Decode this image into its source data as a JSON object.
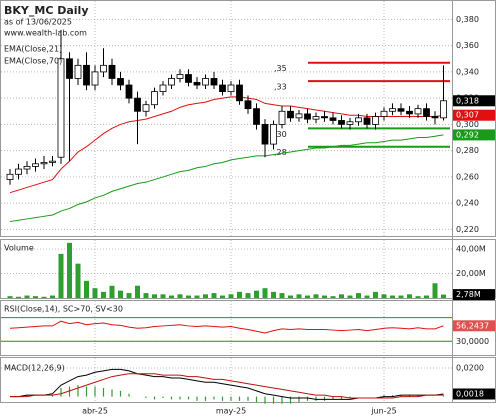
{
  "chart_data": {
    "type": "candlestick",
    "title": "BKY_MC Daily",
    "subtitle": "as of 13/06/2025",
    "source": "www.wealth-lab.com",
    "categories": [
      null,
      null,
      null,
      null,
      null,
      null,
      null,
      null,
      null,
      null,
      "abr-25",
      null,
      null,
      null,
      null,
      null,
      null,
      null,
      null,
      null,
      null,
      null,
      null,
      null,
      null,
      null,
      "may-25",
      null,
      null,
      null,
      null,
      null,
      null,
      null,
      null,
      null,
      null,
      null,
      null,
      null,
      null,
      null,
      null,
      null,
      "jun-25",
      null,
      null,
      null,
      null,
      null,
      null,
      null
    ],
    "open": [
      0.258,
      0.262,
      0.266,
      0.268,
      0.27,
      0.271,
      0.275,
      0.35,
      0.335,
      0.345,
      0.33,
      0.34,
      0.345,
      0.335,
      0.33,
      0.32,
      0.31,
      0.315,
      0.325,
      0.33,
      0.335,
      0.338,
      0.332,
      0.33,
      0.335,
      0.33,
      0.325,
      0.33,
      0.318,
      0.312,
      0.3,
      0.285,
      0.3,
      0.31,
      0.305,
      0.308,
      0.304,
      0.306,
      0.305,
      0.303,
      0.3,
      0.302,
      0.305,
      0.3,
      0.306,
      0.31,
      0.312,
      0.31,
      0.308,
      0.312,
      0.306,
      0.305
    ],
    "high": [
      0.266,
      0.27,
      0.272,
      0.274,
      0.276,
      0.276,
      0.372,
      0.355,
      0.35,
      0.355,
      0.345,
      0.358,
      0.35,
      0.34,
      0.334,
      0.325,
      0.318,
      0.328,
      0.333,
      0.338,
      0.342,
      0.342,
      0.336,
      0.338,
      0.34,
      0.334,
      0.333,
      0.334,
      0.322,
      0.316,
      0.304,
      0.303,
      0.314,
      0.314,
      0.311,
      0.312,
      0.309,
      0.31,
      0.309,
      0.307,
      0.305,
      0.308,
      0.308,
      0.309,
      0.313,
      0.316,
      0.316,
      0.314,
      0.315,
      0.316,
      0.31,
      0.345
    ],
    "low": [
      0.254,
      0.258,
      0.262,
      0.264,
      0.266,
      0.268,
      0.27,
      0.272,
      0.33,
      0.326,
      0.326,
      0.336,
      0.33,
      0.326,
      0.316,
      0.285,
      0.306,
      0.312,
      0.322,
      0.327,
      0.332,
      0.329,
      0.327,
      0.327,
      0.327,
      0.322,
      0.322,
      0.315,
      0.308,
      0.296,
      0.275,
      0.281,
      0.297,
      0.302,
      0.302,
      0.301,
      0.301,
      0.302,
      0.3,
      0.297,
      0.296,
      0.299,
      0.297,
      0.296,
      0.303,
      0.307,
      0.307,
      0.305,
      0.305,
      0.303,
      0.3,
      0.303
    ],
    "close": [
      0.262,
      0.266,
      0.268,
      0.27,
      0.271,
      0.272,
      0.35,
      0.335,
      0.345,
      0.33,
      0.34,
      0.345,
      0.335,
      0.33,
      0.32,
      0.31,
      0.315,
      0.325,
      0.33,
      0.335,
      0.338,
      0.332,
      0.33,
      0.335,
      0.33,
      0.325,
      0.33,
      0.318,
      0.312,
      0.3,
      0.285,
      0.3,
      0.31,
      0.305,
      0.308,
      0.304,
      0.306,
      0.305,
      0.303,
      0.3,
      0.302,
      0.305,
      0.3,
      0.306,
      0.31,
      0.312,
      0.31,
      0.308,
      0.312,
      0.306,
      0.305,
      0.318
    ],
    "close_label": "0,318",
    "ylim": [
      0.215,
      0.394
    ],
    "yticks": [
      {
        "value": 0.22,
        "label": "0,220"
      },
      {
        "value": 0.24,
        "label": "0,240"
      },
      {
        "value": 0.26,
        "label": "0,260"
      },
      {
        "value": 0.28,
        "label": "0,280"
      },
      {
        "value": 0.3,
        "label": "0,300"
      },
      {
        "value": 0.32,
        "label": "0,320"
      },
      {
        "value": 0.34,
        "label": "0,340"
      },
      {
        "value": 0.36,
        "label": "0,360"
      },
      {
        "value": 0.38,
        "label": "0,380"
      }
    ],
    "grid": true,
    "series": [
      {
        "name": "EMA(Close,21)",
        "color": "#e01010",
        "value_label": "0,307",
        "values": [
          0.248,
          0.25,
          0.252,
          0.254,
          0.256,
          0.258,
          0.266,
          0.272,
          0.279,
          0.283,
          0.288,
          0.293,
          0.297,
          0.3,
          0.302,
          0.303,
          0.304,
          0.306,
          0.308,
          0.31,
          0.313,
          0.315,
          0.316,
          0.317,
          0.319,
          0.32,
          0.321,
          0.321,
          0.32,
          0.319,
          0.316,
          0.315,
          0.314,
          0.314,
          0.313,
          0.312,
          0.311,
          0.31,
          0.309,
          0.308,
          0.307,
          0.307,
          0.306,
          0.306,
          0.306,
          0.306,
          0.306,
          0.306,
          0.306,
          0.306,
          0.306,
          0.307
        ]
      },
      {
        "name": "EMA(Close,70)",
        "color": "#1a9a1a",
        "value_label": "0,292",
        "values": [
          0.226,
          0.227,
          0.228,
          0.229,
          0.23,
          0.231,
          0.234,
          0.236,
          0.239,
          0.241,
          0.244,
          0.246,
          0.249,
          0.251,
          0.253,
          0.255,
          0.256,
          0.258,
          0.26,
          0.262,
          0.264,
          0.265,
          0.267,
          0.268,
          0.27,
          0.271,
          0.273,
          0.274,
          0.275,
          0.276,
          0.276,
          0.277,
          0.278,
          0.279,
          0.28,
          0.281,
          0.282,
          0.282,
          0.283,
          0.284,
          0.284,
          0.285,
          0.286,
          0.286,
          0.287,
          0.288,
          0.288,
          0.289,
          0.29,
          0.29,
          0.291,
          0.292
        ]
      }
    ],
    "levels": [
      {
        "value": 0.347,
        "label": ",35",
        "color": "#e01010"
      },
      {
        "value": 0.333,
        "label": ",33",
        "color": "#e01010"
      },
      {
        "value": 0.297,
        "label": ",30",
        "color": "#1a9a1a"
      },
      {
        "value": 0.283,
        "label": ",28",
        "color": "#1a9a1a"
      }
    ],
    "volume": {
      "label": "Volume",
      "color": "#2e9e2e",
      "values": [
        1.5,
        1,
        2,
        1.5,
        1,
        2,
        36,
        45,
        28,
        14,
        8,
        5,
        10,
        6,
        4,
        10,
        4,
        3,
        3,
        2,
        3,
        2,
        2,
        3,
        4,
        2,
        3,
        5,
        4,
        6,
        8,
        5,
        4,
        2,
        3,
        2,
        3,
        2,
        1.5,
        3,
        2,
        4,
        2,
        5,
        3,
        2,
        2,
        3,
        1.5,
        2,
        12,
        2.78
      ],
      "value_label": "2,78M",
      "ylim": [
        0,
        47.3
      ],
      "yticks": [
        {
          "value": 20,
          "label": "20,00M"
        },
        {
          "value": 40,
          "label": "40,00M"
        }
      ]
    },
    "rsi": {
      "label": "RSI(Close,14), SC>70, SV<30",
      "color": "#e01010",
      "levels": [
        70,
        30
      ],
      "values": [
        52,
        53,
        54,
        55,
        56,
        56,
        64,
        60,
        62,
        58,
        60,
        61,
        58,
        57,
        54,
        52,
        53,
        55,
        56,
        57,
        58,
        56,
        55,
        56,
        55,
        54,
        55,
        52,
        50,
        47,
        44,
        48,
        51,
        50,
        51,
        50,
        50,
        50,
        49,
        48,
        49,
        50,
        48,
        50,
        52,
        53,
        52,
        51,
        53,
        51,
        51,
        56.2437
      ],
      "value_label": "56,2437",
      "ylim": [
        6.7,
        98.3
      ],
      "yticks": [
        {
          "value": 30,
          "label": "30,0000"
        }
      ]
    },
    "macd": {
      "label": "MACD(12,26,9)",
      "ylim": [
        -0.0038,
        0.027
      ],
      "yticks": [
        {
          "value": 0.02,
          "label": "0,0200"
        }
      ],
      "value_label": "0,0018",
      "series": [
        {
          "name": "MACD",
          "color": "#000000",
          "values": [
            0,
            0,
            0.001,
            0.001,
            0.001,
            0.002,
            0.008,
            0.011,
            0.014,
            0.015,
            0.017,
            0.018,
            0.019,
            0.019,
            0.018,
            0.016,
            0.015,
            0.014,
            0.014,
            0.013,
            0.013,
            0.012,
            0.011,
            0.01,
            0.01,
            0.009,
            0.008,
            0.007,
            0.006,
            0.004,
            0.002,
            0.001,
            0,
            -0.001,
            -0.001,
            -0.001,
            -0.002,
            -0.002,
            -0.002,
            -0.002,
            -0.002,
            -0.001,
            -0.001,
            -0.001,
            0,
            0,
            0.001,
            0.001,
            0.001,
            0.001,
            0.001,
            0.0018
          ]
        },
        {
          "name": "Signal",
          "color": "#c01010",
          "values": [
            0,
            0,
            0,
            0.001,
            0.001,
            0.001,
            0.002,
            0.004,
            0.006,
            0.008,
            0.01,
            0.012,
            0.014,
            0.015,
            0.016,
            0.016,
            0.016,
            0.016,
            0.015,
            0.015,
            0.015,
            0.014,
            0.014,
            0.013,
            0.012,
            0.012,
            0.011,
            0.01,
            0.009,
            0.008,
            0.007,
            0.006,
            0.005,
            0.004,
            0.003,
            0.002,
            0.001,
            0.001,
            0,
            0,
            -0.001,
            -0.001,
            -0.001,
            -0.001,
            -0.001,
            -0.001,
            0,
            0,
            0,
            0.001,
            0.001,
            0.001
          ]
        },
        {
          "name": "Histogram",
          "color": "#2e9e2e",
          "values": [
            0,
            0,
            0.001,
            0,
            0,
            0.001,
            0.006,
            0.007,
            0.008,
            0.007,
            0.007,
            0.006,
            0.005,
            0.004,
            0.002,
            0,
            -0.001,
            -0.002,
            -0.001,
            -0.002,
            -0.002,
            -0.002,
            -0.003,
            -0.003,
            -0.002,
            -0.003,
            -0.003,
            -0.003,
            -0.003,
            -0.004,
            -0.005,
            -0.005,
            -0.005,
            -0.005,
            -0.004,
            -0.003,
            -0.003,
            -0.003,
            -0.002,
            -0.002,
            -0.001,
            0,
            0,
            0,
            0.001,
            0.001,
            0.001,
            0.001,
            0.001,
            0,
            0,
            0.0008
          ]
        }
      ]
    }
  }
}
